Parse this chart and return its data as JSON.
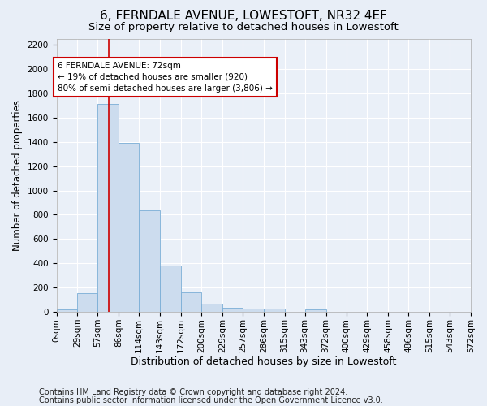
{
  "title": "6, FERNDALE AVENUE, LOWESTOFT, NR32 4EF",
  "subtitle": "Size of property relative to detached houses in Lowestoft",
  "xlabel": "Distribution of detached houses by size in Lowestoft",
  "ylabel": "Number of detached properties",
  "footnote1": "Contains HM Land Registry data © Crown copyright and database right 2024.",
  "footnote2": "Contains public sector information licensed under the Open Government Licence v3.0.",
  "bin_edges": [
    0,
    29,
    57,
    86,
    114,
    143,
    172,
    200,
    229,
    257,
    286,
    315,
    343,
    372,
    400,
    429,
    458,
    486,
    515,
    543,
    572
  ],
  "bar_heights": [
    20,
    155,
    1710,
    1390,
    835,
    385,
    160,
    65,
    35,
    30,
    30,
    0,
    20,
    0,
    0,
    0,
    0,
    0,
    0,
    0
  ],
  "bar_color": "#ccdcee",
  "bar_edge_color": "#7aaed6",
  "property_size": 72,
  "property_line_color": "#cc0000",
  "annotation_text": "6 FERNDALE AVENUE: 72sqm\n← 19% of detached houses are smaller (920)\n80% of semi-detached houses are larger (3,806) →",
  "annotation_box_color": "#ffffff",
  "annotation_box_edge_color": "#cc0000",
  "ylim": [
    0,
    2250
  ],
  "yticks": [
    0,
    200,
    400,
    600,
    800,
    1000,
    1200,
    1400,
    1600,
    1800,
    2000,
    2200
  ],
  "background_color": "#e8eef7",
  "plot_background_color": "#eaf0f8",
  "grid_color": "#ffffff",
  "title_fontsize": 11,
  "subtitle_fontsize": 9.5,
  "xlabel_fontsize": 9,
  "ylabel_fontsize": 8.5,
  "tick_fontsize": 7.5,
  "annotation_fontsize": 7.5,
  "footnote_fontsize": 7
}
